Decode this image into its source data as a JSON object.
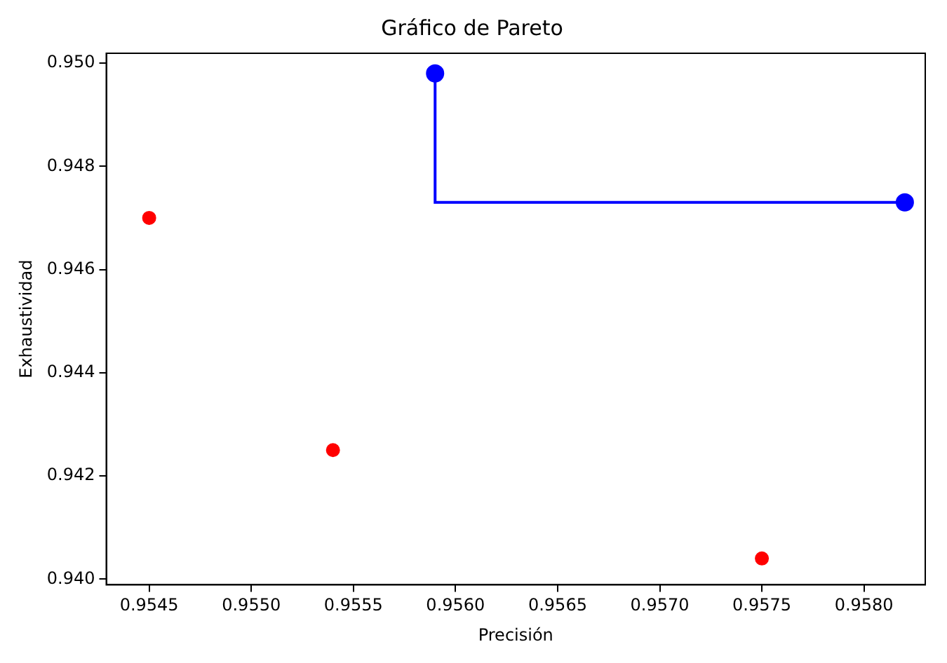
{
  "chart_data": {
    "type": "scatter",
    "title": "Gráfico de Pareto",
    "xlabel": "Precisión",
    "ylabel": "Exhaustividad",
    "xlim": [
      0.95429,
      0.9583
    ],
    "ylim": [
      0.93989,
      0.95019
    ],
    "xticks": [
      0.9545,
      {
        "value": 0.955,
        "label": "0.9550"
      },
      0.9555,
      {
        "value": 0.956,
        "label": "0.9560"
      },
      0.9565,
      {
        "value": 0.957,
        "label": "0.9570"
      },
      0.9575,
      {
        "value": 0.958,
        "label": "0.9580"
      }
    ],
    "yticks": [
      {
        "value": 0.94,
        "label": "0.940"
      },
      0.942,
      0.944,
      0.946,
      0.948,
      {
        "value": 0.95,
        "label": "0.950"
      }
    ],
    "grid": false,
    "legend": false,
    "marker": "circle",
    "series": [
      {
        "color": "#ff0000",
        "x": [
          0.9545,
          0.9554,
          0.9575
        ],
        "values": [
          0.947,
          0.9425,
          0.9404
        ]
      },
      {
        "type": "step",
        "color": "#0000ff",
        "x": [
          0.9559,
          0.9582
        ],
        "values": [
          0.9498,
          0.9473
        ]
      }
    ]
  }
}
